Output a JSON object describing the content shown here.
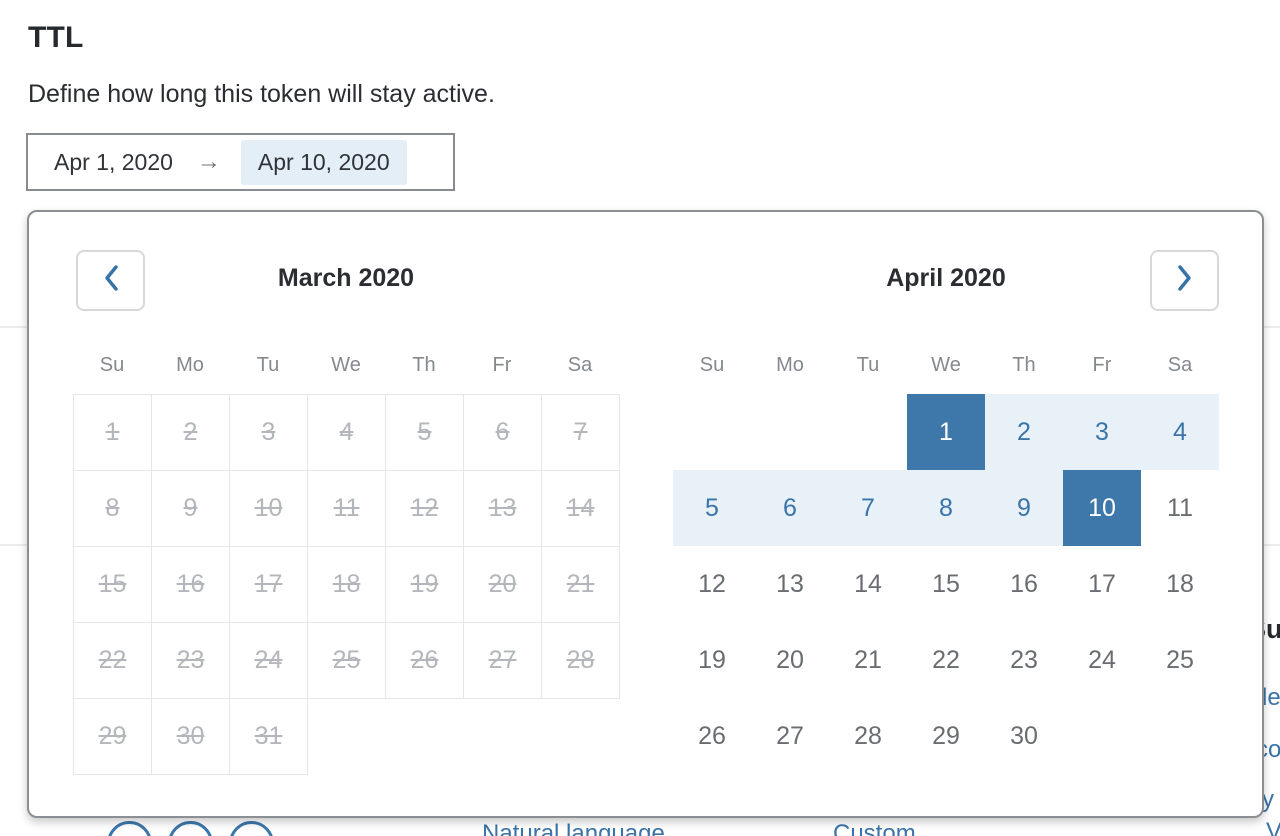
{
  "header": {
    "title": "TTL",
    "description": "Define how long this token will stay active."
  },
  "date_range_input": {
    "start_date": "Apr 1, 2020",
    "arrow_icon": "→",
    "end_date": "Apr 10, 2020"
  },
  "calendar": {
    "prev_button_icon": "chevron-left",
    "next_button_icon": "chevron-right",
    "weekdays": [
      "Su",
      "Mo",
      "Tu",
      "We",
      "Th",
      "Fr",
      "Sa"
    ],
    "months": [
      {
        "title": "March 2020",
        "first_day_col": 0,
        "num_days": 31,
        "default_state": "disabled",
        "day_states": {}
      },
      {
        "title": "April 2020",
        "first_day_col": 3,
        "num_days": 30,
        "default_state": "normal",
        "day_states": {
          "1": "range-start",
          "2": "in-range",
          "3": "in-range",
          "4": "in-range",
          "5": "in-range",
          "6": "in-range",
          "7": "in-range",
          "8": "in-range",
          "9": "in-range",
          "10": "range-end"
        }
      }
    ],
    "selected_range": {
      "start": "Apr 1, 2020",
      "end": "Apr 10, 2020"
    }
  },
  "background_fragments": {
    "right_edge_heading": "Su",
    "right_edge_link_1": "le",
    "right_edge_link_2": "co",
    "right_edge_link_3": "y",
    "bottom_link_natural": "Natural language",
    "bottom_link_custom": "Custom",
    "bottom_right_link": "View"
  },
  "colors": {
    "accent_blue": "#3e78ab",
    "range_light_blue": "#e8f1f8",
    "link_blue": "#3a74a9",
    "disabled_gray": "#b3b6ba",
    "input_highlight": "#e4eef7",
    "border_gray": "#8b8e92"
  }
}
